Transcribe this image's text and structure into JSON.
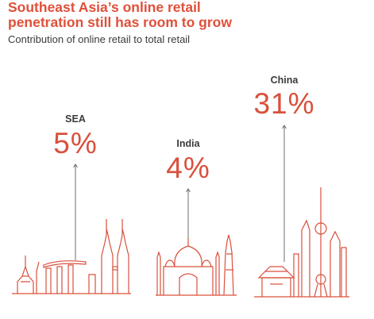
{
  "header": {
    "title_line1": "Southeast Asia’s online retail",
    "title_line2": "penetration still has room to grow",
    "subtitle": "Contribution of online retail to total retail"
  },
  "chart_data": {
    "type": "bar",
    "title": "Southeast Asia’s online retail penetration still has room to grow",
    "subtitle": "Contribution of online retail to total retail",
    "categories": [
      "SEA",
      "India",
      "China"
    ],
    "values": [
      5,
      4,
      31
    ],
    "value_labels": [
      "5%",
      "4%",
      "31%"
    ],
    "unit": "%",
    "xlabel": "",
    "ylabel": "",
    "grid": false,
    "legend": "none"
  },
  "colors": {
    "accent": "#d9503c",
    "line": "#6e6e6e",
    "skyline": "#d9503c"
  },
  "illustrations": [
    "sea-skyline-icon",
    "india-taj-mahal-icon",
    "china-skyline-icon"
  ]
}
